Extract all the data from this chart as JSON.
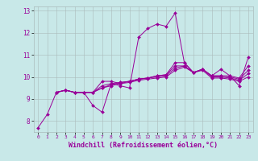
{
  "title": "",
  "xlabel": "Windchill (Refroidissement éolien,°C)",
  "xlabel_fontsize": 6,
  "ylabel": "",
  "background_color": "#c8e8e8",
  "line_color": "#990099",
  "xlim": [
    -0.5,
    23.5
  ],
  "ylim": [
    7.5,
    13.2
  ],
  "yticks": [
    8,
    9,
    10,
    11,
    12,
    13
  ],
  "xticks": [
    0,
    1,
    2,
    3,
    4,
    5,
    6,
    7,
    8,
    9,
    10,
    11,
    12,
    13,
    14,
    15,
    16,
    17,
    18,
    19,
    20,
    21,
    22,
    23
  ],
  "series": [
    [
      7.7,
      8.3,
      9.3,
      9.4,
      9.3,
      9.3,
      8.7,
      8.4,
      9.7,
      9.6,
      9.5,
      11.8,
      12.2,
      12.4,
      12.3,
      12.9,
      10.65,
      10.2,
      10.35,
      10.05,
      10.35,
      10.05,
      9.6,
      10.9
    ],
    [
      null,
      null,
      9.3,
      9.4,
      9.3,
      9.3,
      9.3,
      9.8,
      9.8,
      9.7,
      9.8,
      9.9,
      9.95,
      10.05,
      10.1,
      10.65,
      10.65,
      10.2,
      10.35,
      10.05,
      10.05,
      10.05,
      9.95,
      10.5
    ],
    [
      null,
      null,
      9.3,
      9.4,
      9.3,
      9.3,
      9.3,
      9.6,
      9.7,
      9.75,
      9.8,
      9.9,
      9.95,
      10.05,
      10.1,
      10.5,
      10.5,
      10.2,
      10.35,
      10.05,
      10.05,
      10.0,
      9.9,
      10.3
    ],
    [
      null,
      null,
      9.3,
      9.4,
      9.3,
      9.3,
      9.3,
      9.5,
      9.65,
      9.75,
      9.8,
      9.9,
      9.95,
      10.0,
      10.05,
      10.4,
      10.5,
      10.2,
      10.35,
      10.0,
      10.0,
      9.95,
      9.85,
      10.15
    ],
    [
      null,
      null,
      9.3,
      9.4,
      9.3,
      9.3,
      9.3,
      9.5,
      9.6,
      9.7,
      9.75,
      9.85,
      9.9,
      9.95,
      10.0,
      10.3,
      10.45,
      10.2,
      10.3,
      9.95,
      9.95,
      9.9,
      9.8,
      10.0
    ]
  ]
}
